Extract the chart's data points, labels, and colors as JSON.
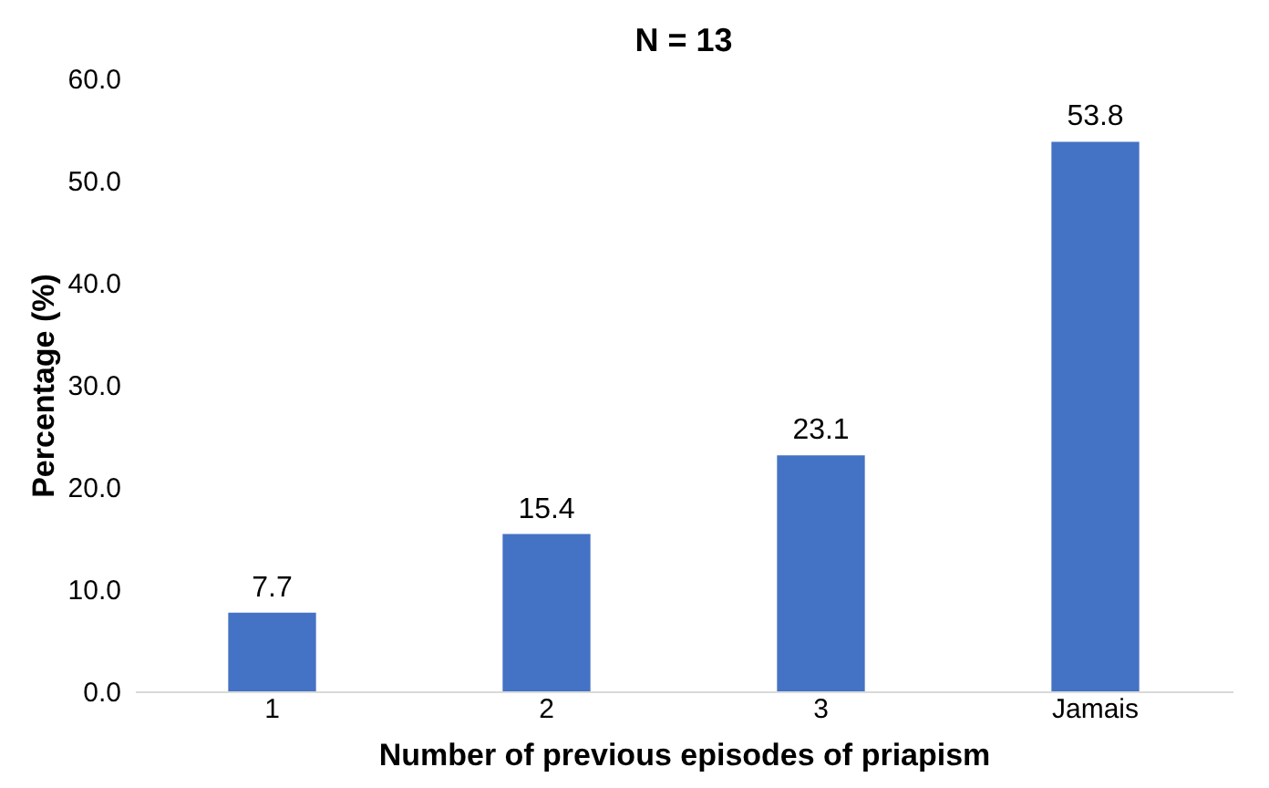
{
  "chart_data": {
    "type": "bar",
    "title": "N = 13",
    "xlabel": "Number of previous episodes of priapism",
    "ylabel": "Percentage (%)",
    "categories": [
      "1",
      "2",
      "3",
      "Jamais"
    ],
    "values": [
      7.7,
      15.4,
      23.1,
      53.8
    ],
    "color": "#4472c4",
    "ylim": [
      0,
      60
    ],
    "yticks": [
      {
        "value": 0,
        "label": "0.0"
      },
      {
        "value": 10,
        "label": "10.0"
      },
      {
        "value": 20,
        "label": "20.0"
      },
      {
        "value": 30,
        "label": "30.0"
      },
      {
        "value": 40,
        "label": "40.0"
      },
      {
        "value": 50,
        "label": "50.0"
      },
      {
        "value": 60,
        "label": "60.0"
      }
    ],
    "data_labels": true
  }
}
